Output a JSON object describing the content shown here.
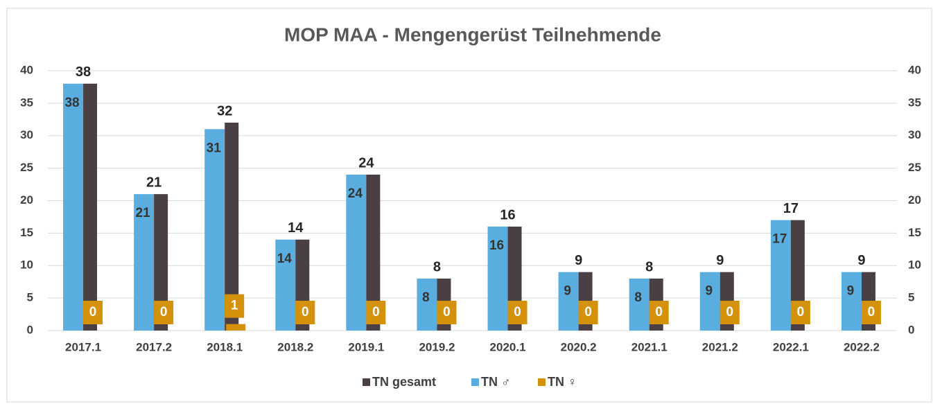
{
  "chart_data": {
    "type": "bar",
    "title": "MOP MAA - Mengengerüst Teilnehmende",
    "categories": [
      "2017.1",
      "2017.2",
      "2018.1",
      "2018.2",
      "2019.1",
      "2019.2",
      "2020.1",
      "2020.2",
      "2021.1",
      "2021.2",
      "2022.1",
      "2022.2"
    ],
    "series": [
      {
        "name": "TN ♂",
        "color": "#5aaedf",
        "values": [
          38,
          21,
          31,
          14,
          24,
          8,
          16,
          9,
          8,
          9,
          17,
          9
        ]
      },
      {
        "name": "TN gesamt",
        "color": "#4a3f45",
        "values": [
          38,
          21,
          32,
          14,
          24,
          8,
          16,
          9,
          8,
          9,
          17,
          9
        ]
      },
      {
        "name": "TN ♀",
        "color": "#d4920a",
        "values": [
          0,
          0,
          1,
          0,
          0,
          0,
          0,
          0,
          0,
          0,
          0,
          0
        ]
      }
    ],
    "legend_order": [
      "TN gesamt",
      "TN ♂",
      "TN ♀"
    ],
    "ylim": [
      0,
      40
    ],
    "yticks": [
      0,
      5,
      10,
      15,
      20,
      25,
      30,
      35,
      40
    ],
    "y2lim": [
      0,
      40
    ],
    "y2ticks": [
      0,
      5,
      10,
      15,
      20,
      25,
      30,
      35,
      40
    ],
    "grid": true,
    "legend": "bottom"
  }
}
